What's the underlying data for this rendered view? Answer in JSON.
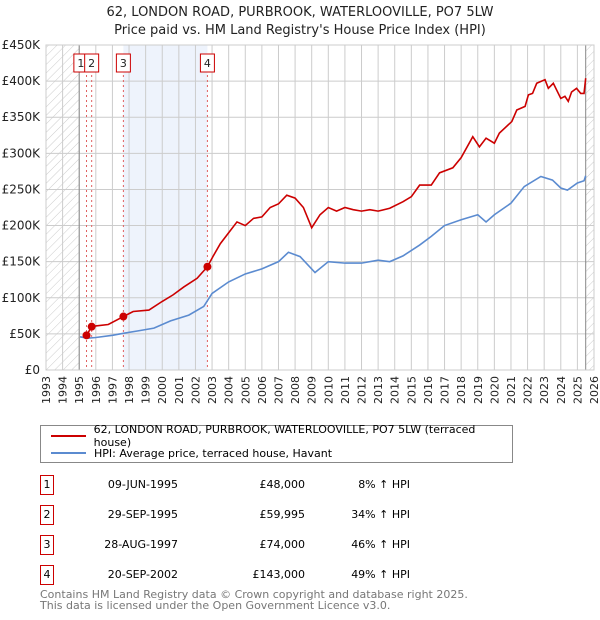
{
  "chart_data": {
    "type": "line",
    "title": "62, LONDON ROAD, PURBROOK, WATERLOOVILLE, PO7 5LW",
    "subtitle": "Price paid vs. HM Land Registry's House Price Index (HPI)",
    "xlim": [
      1993,
      2026
    ],
    "ylim": [
      0,
      450000
    ],
    "xticks": [
      "1993",
      "1994",
      "1995",
      "1996",
      "1997",
      "1998",
      "1999",
      "2000",
      "2001",
      "2002",
      "2003",
      "2004",
      "2005",
      "2006",
      "2007",
      "2008",
      "2009",
      "2010",
      "2011",
      "2012",
      "2013",
      "2014",
      "2015",
      "2016",
      "2017",
      "2018",
      "2019",
      "2020",
      "2021",
      "2022",
      "2023",
      "2024",
      "2025",
      "2026"
    ],
    "yticks": [
      {
        "v": 0,
        "l": "£0"
      },
      {
        "v": 50000,
        "l": "£50K"
      },
      {
        "v": 100000,
        "l": "£100K"
      },
      {
        "v": 150000,
        "l": "£150K"
      },
      {
        "v": 200000,
        "l": "£200K"
      },
      {
        "v": 250000,
        "l": "£250K"
      },
      {
        "v": 300000,
        "l": "£300K"
      },
      {
        "v": 350000,
        "l": "£350K"
      },
      {
        "v": 400000,
        "l": "£400K"
      },
      {
        "v": 450000,
        "l": "£450K"
      }
    ],
    "grid": true,
    "hatched_before": 1995.0,
    "hatched_after": 2025.5,
    "shaded_range": [
      1997.66,
      2002.72
    ],
    "series": [
      {
        "name": "62, LONDON ROAD, PURBROOK, WATERLOOVILLE, PO7 5LW (terraced house)",
        "color": "#cc0000",
        "x": [
          1995.44,
          1995.75,
          1996.0,
          1996.75,
          1997.66,
          1998.25,
          1999.2,
          2000.0,
          2000.65,
          2001.3,
          2002.1,
          2002.72,
          2003.05,
          2003.5,
          2004.0,
          2004.5,
          2005.0,
          2005.5,
          2006.0,
          2006.5,
          2007.0,
          2007.5,
          2008.0,
          2008.5,
          2009.0,
          2009.5,
          2010.0,
          2010.5,
          2011.0,
          2011.5,
          2012.0,
          2012.5,
          2013.0,
          2013.7,
          2014.5,
          2015.0,
          2015.5,
          2016.2,
          2016.7,
          2017.5,
          2018.0,
          2018.7,
          2019.1,
          2019.5,
          2020.0,
          2020.3,
          2021.05,
          2021.35,
          2021.85,
          2022.05,
          2022.3,
          2022.55,
          2023.05,
          2023.25,
          2023.55,
          2024.0,
          2024.25,
          2024.45,
          2024.65,
          2024.95,
          2025.2,
          2025.4,
          2025.5
        ],
        "y": [
          48000,
          59995,
          61000,
          63000,
          74000,
          81000,
          83000,
          95000,
          104000,
          115000,
          127000,
          143000,
          157000,
          175000,
          190000,
          205000,
          200000,
          210000,
          212000,
          225000,
          230000,
          242000,
          238000,
          225000,
          197000,
          215000,
          225000,
          220000,
          225000,
          222000,
          220000,
          222000,
          220000,
          224000,
          233000,
          240000,
          256000,
          256000,
          273000,
          280000,
          294000,
          323000,
          309000,
          321000,
          314000,
          328000,
          344000,
          360000,
          365000,
          381000,
          383000,
          397000,
          402000,
          390000,
          397000,
          376000,
          379000,
          372000,
          385000,
          390000,
          383000,
          383000,
          404000
        ]
      },
      {
        "name": "HPI: Average price, terraced house, Havant",
        "color": "#5b8bd0",
        "x": [
          1995.05,
          1995.5,
          1996.0,
          1997.0,
          1997.7,
          1998.5,
          1999.5,
          2000.5,
          2001.6,
          2002.5,
          2003.0,
          2004.0,
          2005.0,
          2006.0,
          2007.0,
          2007.6,
          2008.3,
          2009.2,
          2010.0,
          2011.0,
          2012.0,
          2013.0,
          2013.7,
          2014.5,
          2015.5,
          2016.2,
          2017.0,
          2018.0,
          2019.0,
          2019.5,
          2020.0,
          2021.0,
          2021.8,
          2022.8,
          2023.5,
          2024.0,
          2024.4,
          2025.0,
          2025.4,
          2025.5
        ],
        "y": [
          46000,
          44000,
          45000,
          48000,
          51000,
          54000,
          58000,
          68000,
          76000,
          88000,
          106000,
          122000,
          133000,
          140000,
          150000,
          163000,
          157000,
          135000,
          150000,
          148000,
          148000,
          152000,
          150000,
          158000,
          173000,
          185000,
          200000,
          208000,
          215000,
          205000,
          215000,
          231000,
          254000,
          268000,
          263000,
          252000,
          249000,
          259000,
          262000,
          269000
        ]
      }
    ],
    "sales": [
      {
        "n": "1",
        "x": 1995.44,
        "y": 48000,
        "label_x": 1995.1
      },
      {
        "n": "2",
        "x": 1995.75,
        "y": 59995,
        "label_x": 1995.75
      },
      {
        "n": "3",
        "x": 1997.66,
        "y": 74000,
        "label_x": 1997.66
      },
      {
        "n": "4",
        "x": 2002.72,
        "y": 143000,
        "label_x": 2002.72
      }
    ]
  },
  "header": {
    "title": "62, LONDON ROAD, PURBROOK, WATERLOOVILLE, PO7 5LW",
    "subtitle": "Price paid vs. HM Land Registry's House Price Index (HPI)"
  },
  "legend": {
    "red": "62, LONDON ROAD, PURBROOK, WATERLOOVILLE, PO7 5LW (terraced house)",
    "blue": "HPI: Average price, terraced house, Havant"
  },
  "table": [
    {
      "n": "1",
      "date": "09-JUN-1995",
      "price": "£48,000",
      "hpi": "8% ↑ HPI"
    },
    {
      "n": "2",
      "date": "29-SEP-1995",
      "price": "£59,995",
      "hpi": "34% ↑ HPI"
    },
    {
      "n": "3",
      "date": "28-AUG-1997",
      "price": "£74,000",
      "hpi": "46% ↑ HPI"
    },
    {
      "n": "4",
      "date": "20-SEP-2002",
      "price": "£143,000",
      "hpi": "49% ↑ HPI"
    }
  ],
  "footer": {
    "line1": "Contains HM Land Registry data © Crown copyright and database right 2025.",
    "line2": "This data is licensed under the Open Government Licence v3.0."
  }
}
